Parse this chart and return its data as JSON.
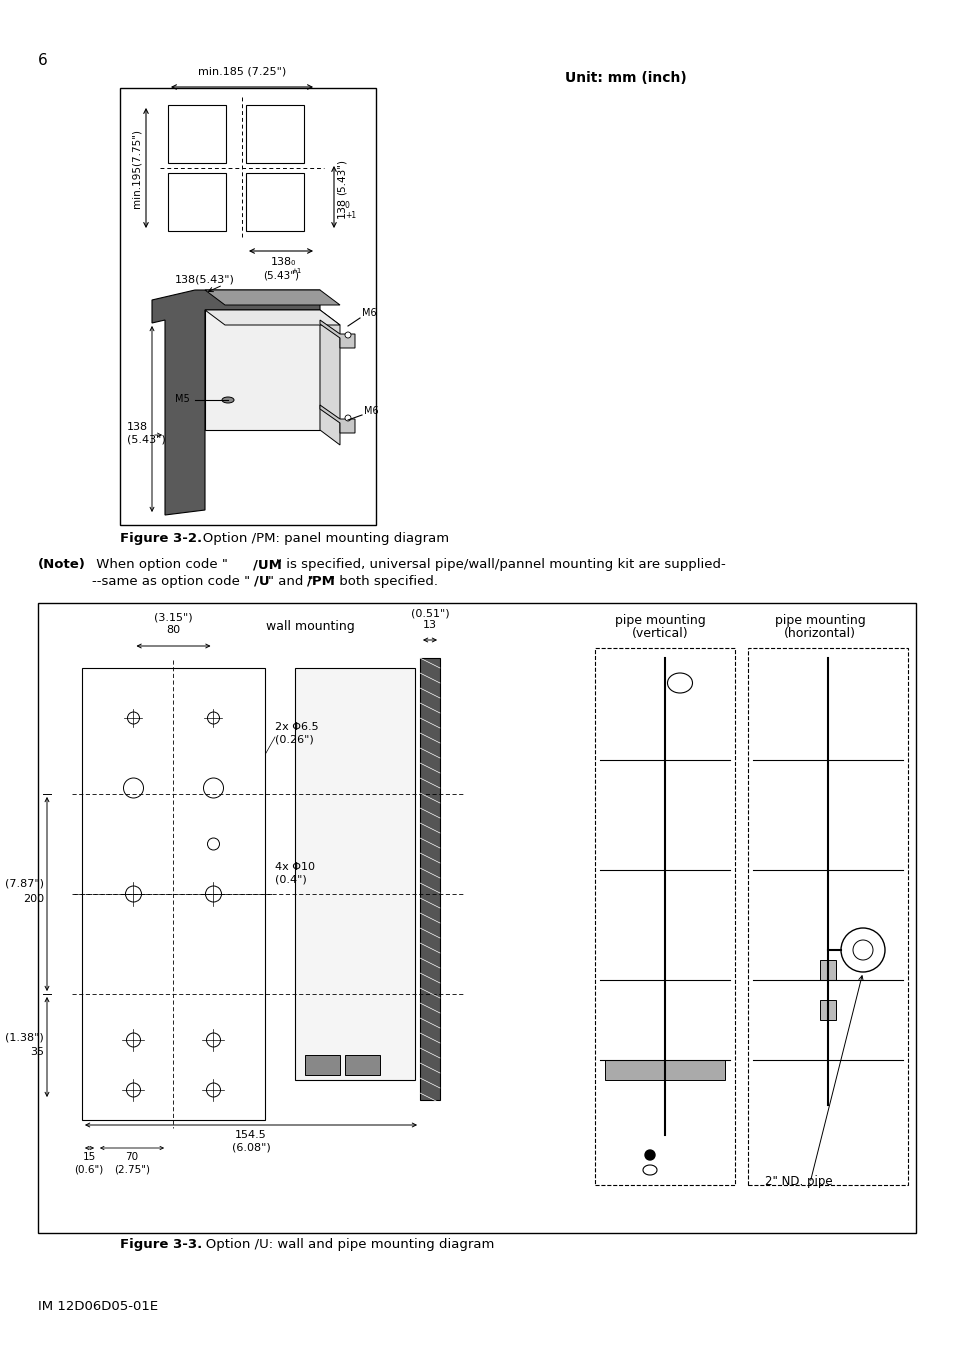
{
  "page_number": "6",
  "footer_text": "IM 12D06D05-01E",
  "unit_label": "Unit: mm (inch)",
  "fig1_caption_bold": "Figure 3-2.",
  "fig1_caption_rest": "   Option /PM: panel mounting diagram",
  "note_bold": "(Note)",
  "note_line1": "  When option code \"/UM\" is specified, universal pipe/wall/pannel mounting kit are supplied-",
  "note_line2": "        --same as option code \"/U\" and \"/PM\" both specified.",
  "fig2_caption_bold": "Figure 3-3.",
  "fig2_caption_rest": "   Option /U: wall and pipe mounting diagram",
  "bg_color": "#ffffff"
}
